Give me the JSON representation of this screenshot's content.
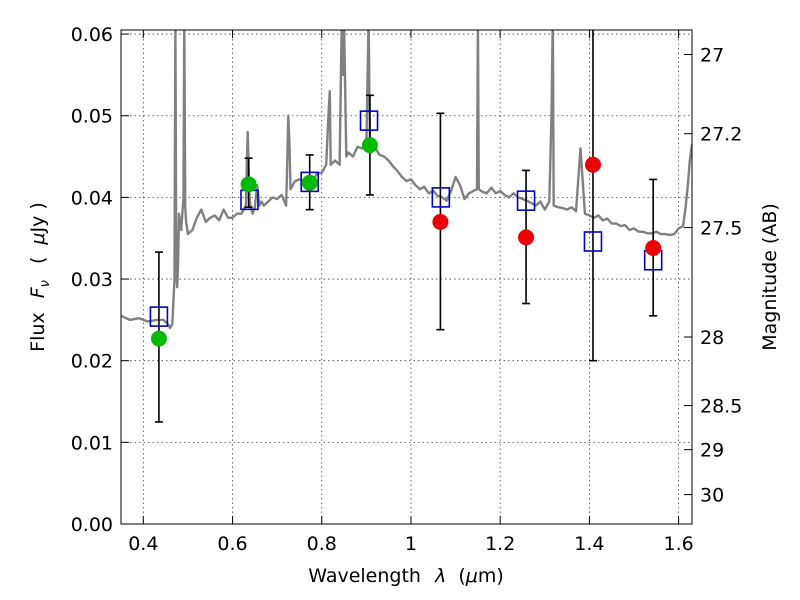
{
  "chart_data": {
    "type": "scatter",
    "title": "",
    "xlabel": {
      "main": "Wavelength",
      "symbol": "λ",
      "unit_open": "(",
      "unit_mu": "μ",
      "unit_rest": "m)"
    },
    "ylabel": {
      "main": "Flux",
      "symbol": "F",
      "sub": "ν",
      "unit_open": "(",
      "unit_mu": "μ",
      "unit_rest": "Jy )"
    },
    "y2label": "Magnitude (AB)",
    "xlim": [
      0.35,
      1.63
    ],
    "ylim": [
      0.0,
      0.0605
    ],
    "grid": true,
    "x_ticks": [
      0.4,
      0.6,
      0.8,
      1.0,
      1.2,
      1.4,
      1.6
    ],
    "x_tick_labels": [
      "0.4",
      "0.6",
      "0.8",
      "1",
      "1.2",
      "1.4",
      "1.6"
    ],
    "y_ticks": [
      0.0,
      0.01,
      0.02,
      0.03,
      0.04,
      0.05,
      0.06
    ],
    "y_tick_labels": [
      "0.00",
      "0.01",
      "0.02",
      "0.03",
      "0.04",
      "0.05",
      "0.06"
    ],
    "y2_ticks": [
      {
        "label": "27",
        "flux": 0.0575
      },
      {
        "label": "27.2",
        "flux": 0.0478
      },
      {
        "label": "27.5",
        "flux": 0.0363
      },
      {
        "label": "28",
        "flux": 0.0229
      },
      {
        "label": "28.5",
        "flux": 0.0145
      },
      {
        "label": "29",
        "flux": 0.0091
      },
      {
        "label": "30",
        "flux": 0.0036
      }
    ],
    "series": [
      {
        "kind": "spectrum",
        "color": "#808080",
        "x": [
          0.35,
          0.37,
          0.39,
          0.41,
          0.43,
          0.445,
          0.455,
          0.46,
          0.465,
          0.47,
          0.472,
          0.474,
          0.476,
          0.478,
          0.48,
          0.485,
          0.49,
          0.492,
          0.494,
          0.496,
          0.5,
          0.51,
          0.52,
          0.53,
          0.54,
          0.55,
          0.56,
          0.57,
          0.58,
          0.59,
          0.6,
          0.61,
          0.62,
          0.63,
          0.632,
          0.634,
          0.636,
          0.638,
          0.64,
          0.645,
          0.65,
          0.655,
          0.66,
          0.665,
          0.67,
          0.68,
          0.69,
          0.7,
          0.71,
          0.72,
          0.722,
          0.725,
          0.728,
          0.73,
          0.74,
          0.75,
          0.76,
          0.77,
          0.78,
          0.79,
          0.8,
          0.81,
          0.815,
          0.818,
          0.82,
          0.83,
          0.84,
          0.845,
          0.848,
          0.85,
          0.855,
          0.86,
          0.87,
          0.88,
          0.89,
          0.9,
          0.905,
          0.908,
          0.91,
          0.915,
          0.92,
          0.93,
          0.94,
          0.95,
          0.96,
          0.97,
          0.98,
          0.99,
          1.0,
          1.01,
          1.02,
          1.03,
          1.04,
          1.05,
          1.06,
          1.07,
          1.08,
          1.09,
          1.1,
          1.11,
          1.12,
          1.13,
          1.14,
          1.148,
          1.15,
          1.152,
          1.16,
          1.17,
          1.18,
          1.19,
          1.2,
          1.21,
          1.22,
          1.23,
          1.24,
          1.25,
          1.26,
          1.27,
          1.28,
          1.29,
          1.3,
          1.31,
          1.315,
          1.318,
          1.32,
          1.33,
          1.34,
          1.35,
          1.36,
          1.37,
          1.38,
          1.39,
          1.4,
          1.41,
          1.42,
          1.43,
          1.44,
          1.45,
          1.46,
          1.47,
          1.48,
          1.49,
          1.5,
          1.51,
          1.52,
          1.53,
          1.54,
          1.55,
          1.56,
          1.57,
          1.58,
          1.59,
          1.6,
          1.61,
          1.615,
          1.62,
          1.625,
          1.63
        ],
        "y": [
          0.0255,
          0.025,
          0.0252,
          0.0248,
          0.025,
          0.025,
          0.0245,
          0.024,
          0.0245,
          0.03,
          0.062,
          0.031,
          0.029,
          0.032,
          0.038,
          0.036,
          0.04,
          0.062,
          0.039,
          0.037,
          0.0355,
          0.036,
          0.0375,
          0.0385,
          0.037,
          0.0375,
          0.0378,
          0.0372,
          0.0385,
          0.0375,
          0.0375,
          0.038,
          0.038,
          0.039,
          0.044,
          0.048,
          0.044,
          0.04,
          0.039,
          0.038,
          0.0388,
          0.0415,
          0.039,
          0.0395,
          0.039,
          0.0395,
          0.04,
          0.0398,
          0.0403,
          0.039,
          0.0425,
          0.05,
          0.046,
          0.041,
          0.042,
          0.0422,
          0.042,
          0.0425,
          0.042,
          0.043,
          0.043,
          0.044,
          0.05,
          0.053,
          0.044,
          0.0445,
          0.044,
          0.062,
          0.055,
          0.062,
          0.045,
          0.0455,
          0.045,
          0.0462,
          0.046,
          0.0465,
          0.062,
          0.047,
          0.047,
          0.0465,
          0.046,
          0.0452,
          0.045,
          0.0445,
          0.0438,
          0.0432,
          0.0425,
          0.042,
          0.0422,
          0.0415,
          0.041,
          0.0413,
          0.0405,
          0.0408,
          0.0402,
          0.04,
          0.0396,
          0.0408,
          0.0425,
          0.0415,
          0.0398,
          0.0405,
          0.0408,
          0.041,
          0.062,
          0.041,
          0.0407,
          0.0405,
          0.0412,
          0.0405,
          0.0408,
          0.0403,
          0.04,
          0.0405,
          0.04,
          0.0398,
          0.0396,
          0.0393,
          0.039,
          0.0395,
          0.0385,
          0.0395,
          0.05,
          0.062,
          0.039,
          0.0388,
          0.0387,
          0.0385,
          0.0388,
          0.0383,
          0.046,
          0.038,
          0.0378,
          0.0375,
          0.0378,
          0.0372,
          0.0374,
          0.0368,
          0.0368,
          0.0365,
          0.0366,
          0.036,
          0.0362,
          0.0358,
          0.0358,
          0.0356,
          0.0356,
          0.0358,
          0.0355,
          0.0355,
          0.0354,
          0.0355,
          0.0362,
          0.0365,
          0.0385,
          0.041,
          0.0445,
          0.0465
        ]
      },
      {
        "kind": "model-boxes",
        "color": "#0000cc",
        "x": [
          0.435,
          0.638,
          0.773,
          0.906,
          1.067,
          1.258,
          1.408,
          1.543
        ],
        "y": [
          0.0254,
          0.0397,
          0.0419,
          0.0494,
          0.04,
          0.0396,
          0.0346,
          0.0323
        ]
      },
      {
        "kind": "detections",
        "color": "#00bb00",
        "x": [
          0.435,
          0.636,
          0.773,
          0.908
        ],
        "y": [
          0.0227,
          0.0416,
          0.0418,
          0.0464
        ],
        "err_low": [
          0.0125,
          0.0388,
          0.0385,
          0.0403
        ],
        "err_high": [
          0.0333,
          0.0448,
          0.0452,
          0.0525
        ]
      },
      {
        "kind": "upper-limits",
        "color": "#ee0000",
        "x": [
          1.066,
          1.258,
          1.408,
          1.543
        ],
        "y": [
          0.037,
          0.0351,
          0.044,
          0.0338
        ],
        "err_low": [
          0.0238,
          0.027,
          0.02,
          0.0255
        ],
        "err_high": [
          0.0503,
          0.0433,
          0.062,
          0.0422
        ]
      }
    ]
  }
}
